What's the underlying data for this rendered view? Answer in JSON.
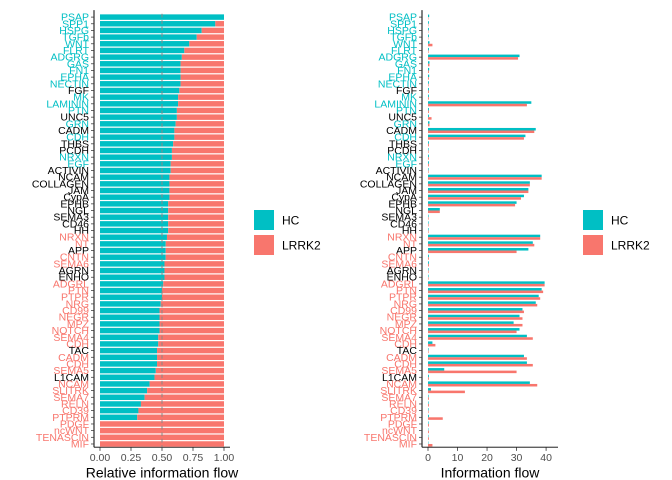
{
  "chart_data": [
    {
      "type": "bar",
      "stacked": true,
      "orientation": "horizontal",
      "xlabel": "Relative information flow",
      "xlim": [
        0,
        1
      ],
      "xticks": [
        "0.00",
        "0.25",
        "0.50",
        "0.75",
        "1.00"
      ],
      "reference_line": 0.5,
      "categories": [
        "PSAP",
        "SPP1",
        "HSPG",
        "TGFb",
        "WNT",
        "FLRT",
        "ADGRG",
        "GAS",
        "FN1",
        "EPHA",
        "NECTIN",
        "FGF",
        "MK",
        "LAMININ",
        "PTN",
        "UNC5",
        "GRN",
        "CADM",
        "CDH",
        "THBS",
        "PCDH",
        "NRXN",
        "EGF",
        "ACTIVIN",
        "NCAM",
        "COLLAGEN",
        "JAM",
        "CypA",
        "EPHB",
        "NGL",
        "SEMA3",
        "CD46",
        "HH",
        "NRXN",
        "NT",
        "APP",
        "CNTN",
        "SEMA6",
        "AGRN",
        "ENHO",
        "ADGRL",
        "PTN",
        "PTPR",
        "NRG",
        "CD99",
        "NEGR",
        "MPZ",
        "NOTCH",
        "SEMA4",
        "CDH",
        "TAC",
        "CADM",
        "CDH",
        "SEMA5",
        "L1CAM",
        "NCAM",
        "SLITRK",
        "SEMA7",
        "RELN",
        "CD39",
        "PTPRM",
        "PDGF",
        "ncWNT",
        "TENASCIN",
        "MIF"
      ],
      "label_colors": [
        "#00BFC4",
        "#00BFC4",
        "#00BFC4",
        "#00BFC4",
        "#00BFC4",
        "#00BFC4",
        "#00BFC4",
        "#00BFC4",
        "#00BFC4",
        "#00BFC4",
        "#00BFC4",
        "#000000",
        "#00BFC4",
        "#00BFC4",
        "#00BFC4",
        "#000000",
        "#00BFC4",
        "#000000",
        "#00BFC4",
        "#000000",
        "#000000",
        "#00BFC4",
        "#00BFC4",
        "#000000",
        "#000000",
        "#000000",
        "#000000",
        "#000000",
        "#000000",
        "#000000",
        "#000000",
        "#000000",
        "#000000",
        "#F8766D",
        "#F8766D",
        "#000000",
        "#F8766D",
        "#F8766D",
        "#000000",
        "#000000",
        "#F8766D",
        "#F8766D",
        "#F8766D",
        "#F8766D",
        "#F8766D",
        "#F8766D",
        "#F8766D",
        "#F8766D",
        "#F8766D",
        "#F8766D",
        "#000000",
        "#F8766D",
        "#F8766D",
        "#F8766D",
        "#000000",
        "#F8766D",
        "#F8766D",
        "#F8766D",
        "#F8766D",
        "#F8766D",
        "#F8766D",
        "#F8766D",
        "#F8766D",
        "#F8766D",
        "#F8766D"
      ],
      "series": [
        {
          "name": "HC",
          "color": "#00BFC4",
          "values": [
            1.0,
            0.93,
            0.82,
            0.78,
            0.72,
            0.68,
            0.66,
            0.65,
            0.65,
            0.65,
            0.65,
            0.64,
            0.63,
            0.63,
            0.62,
            0.62,
            0.61,
            0.6,
            0.6,
            0.59,
            0.58,
            0.58,
            0.57,
            0.57,
            0.56,
            0.56,
            0.56,
            0.56,
            0.55,
            0.55,
            0.55,
            0.55,
            0.55,
            0.54,
            0.53,
            0.53,
            0.53,
            0.52,
            0.52,
            0.52,
            0.51,
            0.5,
            0.5,
            0.49,
            0.48,
            0.48,
            0.48,
            0.48,
            0.47,
            0.47,
            0.46,
            0.46,
            0.46,
            0.45,
            0.44,
            0.4,
            0.38,
            0.36,
            0.33,
            0.31,
            0.3,
            0.0,
            0.0,
            0.0,
            0.0
          ]
        },
        {
          "name": "LRRK2",
          "color": "#F8766D",
          "values": [
            0.0,
            0.07,
            0.18,
            0.22,
            0.28,
            0.32,
            0.34,
            0.35,
            0.35,
            0.35,
            0.35,
            0.36,
            0.37,
            0.37,
            0.38,
            0.38,
            0.39,
            0.4,
            0.4,
            0.41,
            0.42,
            0.42,
            0.43,
            0.43,
            0.44,
            0.44,
            0.44,
            0.44,
            0.45,
            0.45,
            0.45,
            0.45,
            0.45,
            0.46,
            0.47,
            0.47,
            0.47,
            0.48,
            0.48,
            0.48,
            0.49,
            0.5,
            0.5,
            0.51,
            0.52,
            0.52,
            0.52,
            0.52,
            0.53,
            0.53,
            0.54,
            0.54,
            0.54,
            0.55,
            0.56,
            0.6,
            0.62,
            0.64,
            0.67,
            0.69,
            0.7,
            1.0,
            1.0,
            1.0,
            1.0
          ]
        }
      ]
    },
    {
      "type": "bar",
      "stacked": false,
      "orientation": "horizontal",
      "xlabel": "Information flow",
      "xlim": [
        0,
        42
      ],
      "xticks": [
        "0",
        "10",
        "20",
        "30",
        "40"
      ],
      "xtick_values": [
        0,
        10,
        20,
        30,
        40
      ],
      "categories": [
        "PSAP",
        "SPP1",
        "HSPG",
        "TGFb",
        "WNT",
        "FLRT",
        "ADGRG",
        "GAS",
        "FN1",
        "EPHA",
        "NECTIN",
        "FGF",
        "MK",
        "LAMININ",
        "PTN",
        "UNC5",
        "GRN",
        "CADM",
        "CDH",
        "THBS",
        "PCDH",
        "NRXN",
        "EGF",
        "ACTIVIN",
        "NCAM",
        "COLLAGEN",
        "JAM",
        "CypA",
        "EPHB",
        "NGL",
        "SEMA3",
        "CD46",
        "HH",
        "NRXN",
        "NT",
        "APP",
        "CNTN",
        "SEMA6",
        "AGRN",
        "ENHO",
        "ADGRL",
        "PTN",
        "PTPR",
        "NRG",
        "CD99",
        "NEGR",
        "MPZ",
        "NOTCH",
        "SEMA4",
        "CDH",
        "TAC",
        "CADM",
        "CDH",
        "SEMA5",
        "L1CAM",
        "NCAM",
        "SLITRK",
        "SEMA7",
        "RELN",
        "CD39",
        "PTPRM",
        "PDGF",
        "ncWNT",
        "TENASCIN",
        "MIF"
      ],
      "label_colors": [
        "#00BFC4",
        "#00BFC4",
        "#00BFC4",
        "#00BFC4",
        "#00BFC4",
        "#00BFC4",
        "#00BFC4",
        "#00BFC4",
        "#00BFC4",
        "#00BFC4",
        "#00BFC4",
        "#000000",
        "#00BFC4",
        "#00BFC4",
        "#00BFC4",
        "#000000",
        "#00BFC4",
        "#000000",
        "#00BFC4",
        "#000000",
        "#000000",
        "#00BFC4",
        "#00BFC4",
        "#000000",
        "#000000",
        "#000000",
        "#000000",
        "#000000",
        "#000000",
        "#000000",
        "#000000",
        "#000000",
        "#000000",
        "#F8766D",
        "#F8766D",
        "#000000",
        "#F8766D",
        "#F8766D",
        "#000000",
        "#000000",
        "#F8766D",
        "#F8766D",
        "#F8766D",
        "#F8766D",
        "#F8766D",
        "#F8766D",
        "#F8766D",
        "#F8766D",
        "#F8766D",
        "#F8766D",
        "#000000",
        "#F8766D",
        "#F8766D",
        "#F8766D",
        "#000000",
        "#F8766D",
        "#F8766D",
        "#F8766D",
        "#F8766D",
        "#F8766D",
        "#F8766D",
        "#F8766D",
        "#F8766D",
        "#F8766D",
        "#F8766D"
      ],
      "series": [
        {
          "name": "HC",
          "color": "#00BFC4",
          "values": [
            0.4,
            0.3,
            0.3,
            0.3,
            0.5,
            0.3,
            31,
            0.5,
            0.4,
            0.4,
            0.3,
            0.3,
            0.3,
            35,
            0.3,
            0.3,
            0.5,
            36.5,
            33,
            0.3,
            0.2,
            0.3,
            0.3,
            0.2,
            38.5,
            34.5,
            34,
            32.5,
            30,
            4,
            0.2,
            0.2,
            0.2,
            38,
            35.5,
            34,
            0.3,
            0.3,
            0.2,
            0.2,
            39.5,
            38.5,
            37.5,
            36.5,
            32,
            31,
            29,
            31,
            33.5,
            1.5,
            0.2,
            32.5,
            33.5,
            5.5,
            0.3,
            34.5,
            1,
            0.2,
            0.2,
            0.2,
            0.3,
            0.2,
            0.1,
            0.1,
            0.1
          ]
        },
        {
          "name": "LRRK2",
          "color": "#F8766D",
          "values": [
            0,
            0.1,
            0.1,
            0.1,
            1.5,
            0.2,
            30.5,
            0.5,
            0.3,
            0.3,
            0.2,
            0.3,
            0.3,
            33.5,
            0.3,
            1.2,
            0.5,
            36,
            32.5,
            0.3,
            0.2,
            0.3,
            0.3,
            0.2,
            38.5,
            34.5,
            34,
            31.5,
            29.5,
            4,
            0.2,
            0.2,
            0.2,
            38,
            36,
            30,
            0.3,
            0.3,
            0.2,
            0.2,
            39.5,
            39,
            38,
            37,
            32.5,
            32,
            32,
            30,
            35.5,
            2.5,
            0.2,
            33.5,
            35.5,
            30,
            0.3,
            37,
            12.5,
            0.3,
            0.3,
            0.2,
            5,
            0.3,
            0.3,
            0.3,
            1.5
          ]
        }
      ]
    }
  ],
  "legends": [
    {
      "items": [
        {
          "label": "HC",
          "color": "#00BFC4"
        },
        {
          "label": "LRRK2",
          "color": "#F8766D"
        }
      ]
    },
    {
      "items": [
        {
          "label": "HC",
          "color": "#00BFC4"
        },
        {
          "label": "LRRK2",
          "color": "#F8766D"
        }
      ]
    }
  ]
}
